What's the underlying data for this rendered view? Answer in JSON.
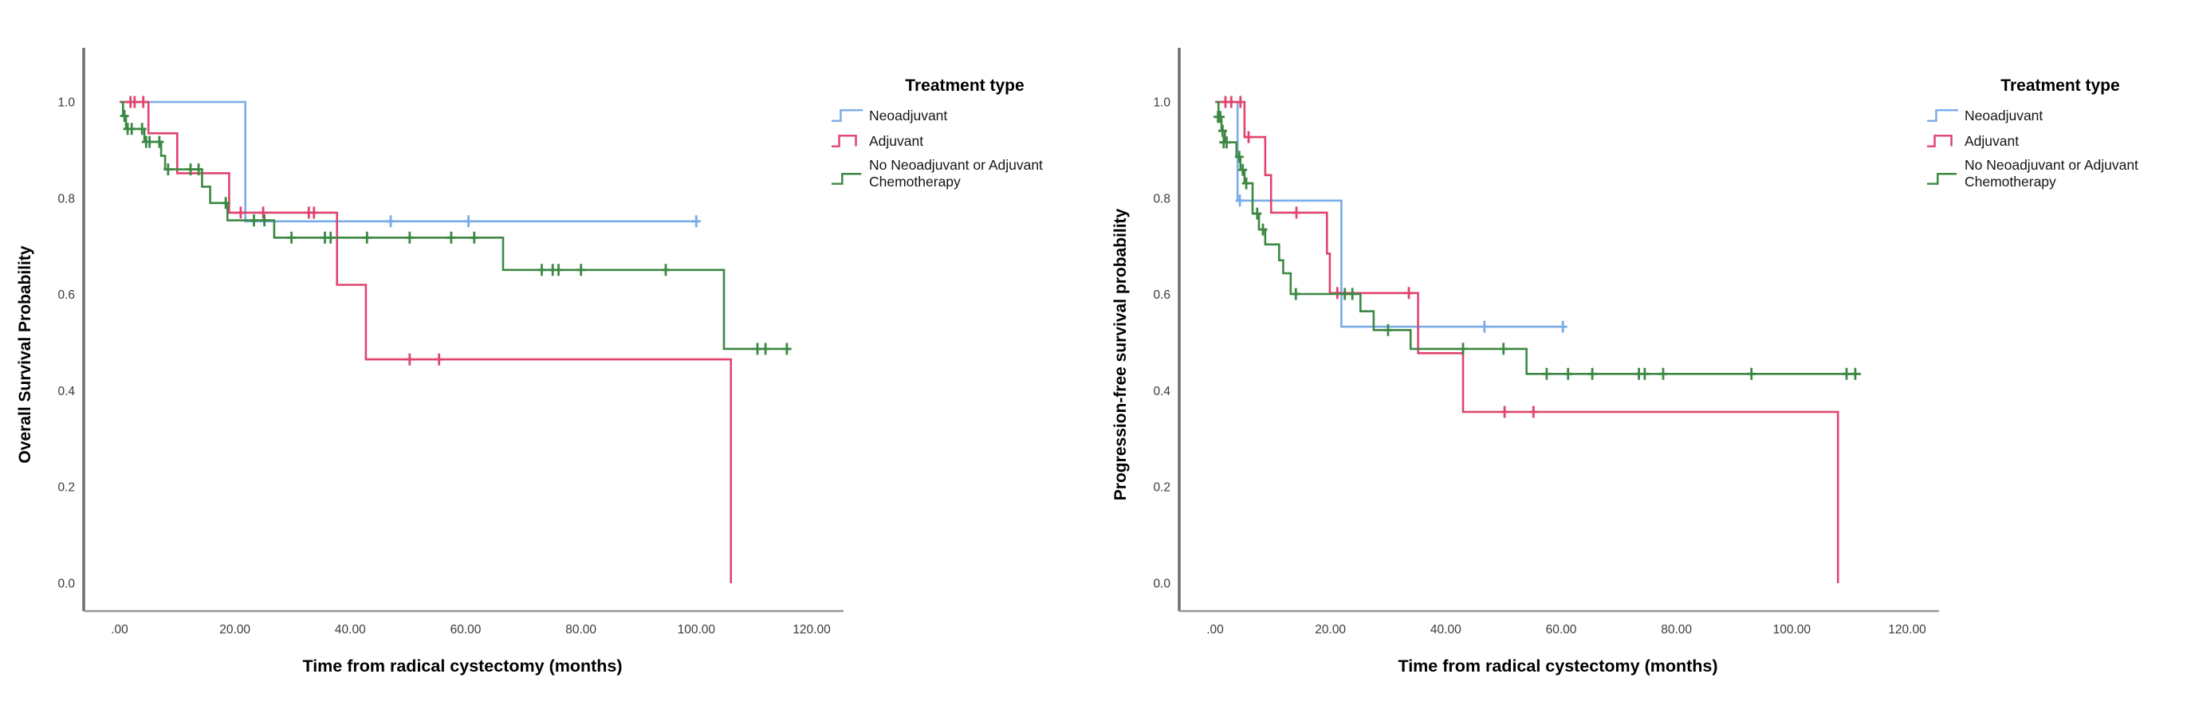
{
  "legend": {
    "title": "Treatment type",
    "items": [
      {
        "label": "Neoadjuvant",
        "color": "#78ACE6",
        "swatch": "step-up"
      },
      {
        "label": "Adjuvant",
        "color": "#E0446E",
        "swatch": "step-bump"
      },
      {
        "label": "No Neoadjuvant or Adjuvant Chemotherapy",
        "label_lines": [
          "No Neoadjuvant or Adjuvant",
          "Chemotherapy"
        ],
        "color": "#3C8843",
        "swatch": "step-up"
      }
    ]
  },
  "chart_data": [
    {
      "type": "line",
      "subtype": "kaplan-meier-step",
      "id": "overall-survival",
      "title": "",
      "xlabel": "Time from radical cystectomy (months)",
      "ylabel": "Overall Survival Probability",
      "xlim": [
        -6,
        126
      ],
      "ylim": [
        -0.06,
        1.06
      ],
      "grid": false,
      "legend_position": "right-top",
      "xticks": {
        "values": [
          0,
          20,
          40,
          60,
          80,
          100,
          120
        ],
        "labels": [
          ".00",
          "20.00",
          "40.00",
          "60.00",
          "80.00",
          "100.00",
          "120.00"
        ]
      },
      "yticks": {
        "values": [
          0.0,
          0.2,
          0.4,
          0.6,
          0.8,
          1.0
        ],
        "labels": [
          "0.0",
          "0.2",
          "0.4",
          "0.6",
          "0.8",
          "1.0"
        ]
      },
      "series": [
        {
          "name": "Neoadjuvant",
          "color": "#78ACE6",
          "steps": [
            [
              0,
              1.0
            ],
            [
              21.8,
              1.0
            ],
            [
              21.8,
              0.752
            ],
            [
              100,
              0.752
            ]
          ],
          "censors": [
            [
              47,
              0.752
            ],
            [
              60.5,
              0.752
            ],
            [
              100,
              0.752
            ]
          ]
        },
        {
          "name": "Adjuvant",
          "color": "#E0446E",
          "steps": [
            [
              0,
              1.0
            ],
            [
              5,
              1.0
            ],
            [
              5,
              0.935
            ],
            [
              10,
              0.935
            ],
            [
              10,
              0.852
            ],
            [
              19,
              0.852
            ],
            [
              19,
              0.77
            ],
            [
              37.7,
              0.77
            ],
            [
              37.7,
              0.62
            ],
            [
              42.7,
              0.62
            ],
            [
              42.7,
              0.465
            ],
            [
              106,
              0.465
            ],
            [
              106,
              0.0
            ]
          ],
          "censors": [
            [
              1.9,
              1.0
            ],
            [
              2.6,
              1.0
            ],
            [
              4.1,
              1.0
            ],
            [
              21,
              0.77
            ],
            [
              24.9,
              0.77
            ],
            [
              32.8,
              0.77
            ],
            [
              33.7,
              0.77
            ],
            [
              50.3,
              0.465
            ],
            [
              55.4,
              0.465
            ]
          ]
        },
        {
          "name": "No Neoadjuvant or Adjuvant Chemotherapy",
          "color": "#3C8843",
          "steps": [
            [
              0.2,
              1.0
            ],
            [
              0.6,
              1.0
            ],
            [
              0.6,
              0.971
            ],
            [
              1.1,
              0.971
            ],
            [
              1.1,
              0.944
            ],
            [
              4.3,
              0.944
            ],
            [
              4.3,
              0.917
            ],
            [
              7.2,
              0.917
            ],
            [
              7.2,
              0.888
            ],
            [
              7.9,
              0.888
            ],
            [
              7.9,
              0.86
            ],
            [
              14.3,
              0.86
            ],
            [
              14.3,
              0.824
            ],
            [
              15.7,
              0.824
            ],
            [
              15.7,
              0.79
            ],
            [
              18.7,
              0.79
            ],
            [
              18.7,
              0.754
            ],
            [
              26.8,
              0.754
            ],
            [
              26.8,
              0.718
            ],
            [
              66.5,
              0.718
            ],
            [
              66.5,
              0.651
            ],
            [
              104.8,
              0.651
            ],
            [
              104.8,
              0.487
            ],
            [
              116.5,
              0.487
            ]
          ],
          "censors": [
            [
              0.85,
              0.971
            ],
            [
              1.4,
              0.944
            ],
            [
              2.1,
              0.944
            ],
            [
              3.9,
              0.944
            ],
            [
              4.6,
              0.917
            ],
            [
              5.2,
              0.917
            ],
            [
              6.9,
              0.917
            ],
            [
              8.4,
              0.86
            ],
            [
              12.3,
              0.86
            ],
            [
              13.7,
              0.86
            ],
            [
              18.4,
              0.79
            ],
            [
              23.3,
              0.754
            ],
            [
              25.1,
              0.754
            ],
            [
              29.8,
              0.718
            ],
            [
              35.6,
              0.718
            ],
            [
              36.6,
              0.718
            ],
            [
              42.9,
              0.718
            ],
            [
              50.3,
              0.718
            ],
            [
              57.5,
              0.718
            ],
            [
              61.5,
              0.718
            ],
            [
              73.2,
              0.651
            ],
            [
              75.1,
              0.651
            ],
            [
              76.1,
              0.651
            ],
            [
              80.0,
              0.651
            ],
            [
              94.7,
              0.651
            ],
            [
              110.6,
              0.487
            ],
            [
              112.0,
              0.487
            ],
            [
              115.7,
              0.487
            ]
          ]
        }
      ]
    },
    {
      "type": "line",
      "subtype": "kaplan-meier-step",
      "id": "progression-free-survival",
      "title": "",
      "xlabel": "Time from radical cystectomy (months)",
      "ylabel": "Progression-free survival probability",
      "xlim": [
        -6,
        126
      ],
      "ylim": [
        -0.06,
        1.06
      ],
      "grid": false,
      "legend_position": "right-top",
      "xticks": {
        "values": [
          0,
          20,
          40,
          60,
          80,
          100,
          120
        ],
        "labels": [
          ".00",
          "20.00",
          "40.00",
          "60.00",
          "80.00",
          "100.00",
          "120.00"
        ]
      },
      "yticks": {
        "values": [
          0.0,
          0.2,
          0.4,
          0.6,
          0.8,
          1.0
        ],
        "labels": [
          "0.0",
          "0.2",
          "0.4",
          "0.6",
          "0.8",
          "1.0"
        ]
      },
      "series": [
        {
          "name": "Neoadjuvant",
          "color": "#78ACE6",
          "steps": [
            [
              0,
              1.0
            ],
            [
              3.9,
              1.0
            ],
            [
              3.9,
              0.795
            ],
            [
              21.9,
              0.795
            ],
            [
              21.9,
              0.533
            ],
            [
              60.3,
              0.533
            ]
          ],
          "censors": [
            [
              4.3,
              0.795
            ],
            [
              46.7,
              0.533
            ],
            [
              60.3,
              0.533
            ]
          ]
        },
        {
          "name": "Adjuvant",
          "color": "#E0446E",
          "steps": [
            [
              0,
              1.0
            ],
            [
              5.1,
              1.0
            ],
            [
              5.1,
              0.927
            ],
            [
              8.7,
              0.927
            ],
            [
              8.7,
              0.848
            ],
            [
              9.7,
              0.848
            ],
            [
              9.7,
              0.77
            ],
            [
              19.4,
              0.77
            ],
            [
              19.4,
              0.685
            ],
            [
              19.9,
              0.685
            ],
            [
              19.9,
              0.603
            ],
            [
              35.2,
              0.603
            ],
            [
              35.2,
              0.478
            ],
            [
              43,
              0.478
            ],
            [
              43,
              0.356
            ],
            [
              108,
              0.356
            ],
            [
              108,
              0.0
            ]
          ],
          "censors": [
            [
              1.8,
              1.0
            ],
            [
              2.8,
              1.0
            ],
            [
              4.4,
              1.0
            ],
            [
              5.8,
              0.927
            ],
            [
              14.1,
              0.77
            ],
            [
              21.2,
              0.603
            ],
            [
              33.6,
              0.603
            ],
            [
              50.2,
              0.356
            ],
            [
              55.2,
              0.356
            ]
          ]
        },
        {
          "name": "No Neoadjuvant or Adjuvant Chemotherapy",
          "color": "#3C8843",
          "steps": [
            [
              0.2,
              1.0
            ],
            [
              0.6,
              1.0
            ],
            [
              0.6,
              0.969
            ],
            [
              1.1,
              0.969
            ],
            [
              1.1,
              0.94
            ],
            [
              1.7,
              0.94
            ],
            [
              1.7,
              0.916
            ],
            [
              3.7,
              0.916
            ],
            [
              3.7,
              0.886
            ],
            [
              4.4,
              0.886
            ],
            [
              4.4,
              0.859
            ],
            [
              5.1,
              0.859
            ],
            [
              5.1,
              0.831
            ],
            [
              6.5,
              0.831
            ],
            [
              6.5,
              0.768
            ],
            [
              7.6,
              0.768
            ],
            [
              7.6,
              0.735
            ],
            [
              8.7,
              0.735
            ],
            [
              8.7,
              0.704
            ],
            [
              11.1,
              0.704
            ],
            [
              11.1,
              0.671
            ],
            [
              11.8,
              0.671
            ],
            [
              11.8,
              0.644
            ],
            [
              13.1,
              0.644
            ],
            [
              13.1,
              0.601
            ],
            [
              25.2,
              0.601
            ],
            [
              25.2,
              0.565
            ],
            [
              27.5,
              0.565
            ],
            [
              27.5,
              0.526
            ],
            [
              33.9,
              0.526
            ],
            [
              33.9,
              0.487
            ],
            [
              54,
              0.487
            ],
            [
              54,
              0.435
            ],
            [
              112,
              0.435
            ]
          ],
          "censors": [
            [
              0.5,
              0.969
            ],
            [
              0.9,
              0.969
            ],
            [
              1.3,
              0.94
            ],
            [
              1.5,
              0.916
            ],
            [
              2.0,
              0.916
            ],
            [
              4.2,
              0.886
            ],
            [
              4.8,
              0.859
            ],
            [
              5.4,
              0.831
            ],
            [
              7.3,
              0.768
            ],
            [
              8.3,
              0.735
            ],
            [
              14.0,
              0.601
            ],
            [
              22.5,
              0.601
            ],
            [
              23.8,
              0.601
            ],
            [
              30.0,
              0.526
            ],
            [
              43.0,
              0.487
            ],
            [
              50.0,
              0.487
            ],
            [
              57.5,
              0.435
            ],
            [
              61.2,
              0.435
            ],
            [
              65.4,
              0.435
            ],
            [
              73.5,
              0.435
            ],
            [
              74.5,
              0.435
            ],
            [
              77.7,
              0.435
            ],
            [
              93.0,
              0.435
            ],
            [
              109.5,
              0.435
            ],
            [
              111.0,
              0.435
            ]
          ]
        }
      ]
    }
  ]
}
